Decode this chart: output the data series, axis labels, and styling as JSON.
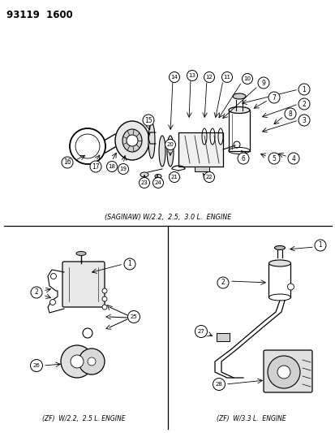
{
  "title_code": "93119  1600",
  "bg_color": "#ffffff",
  "line_color": "#000000",
  "text_color": "#000000",
  "saginaw_label": "(SAGINAW) W/2.2,  2.5,  3.0 L.  ENGINE",
  "zf_22_label": "(ZF)  W/2.2,  2.5 L. ENGINE",
  "zf_33_label": "(ZF)  W/3.3 L.  ENGINE"
}
